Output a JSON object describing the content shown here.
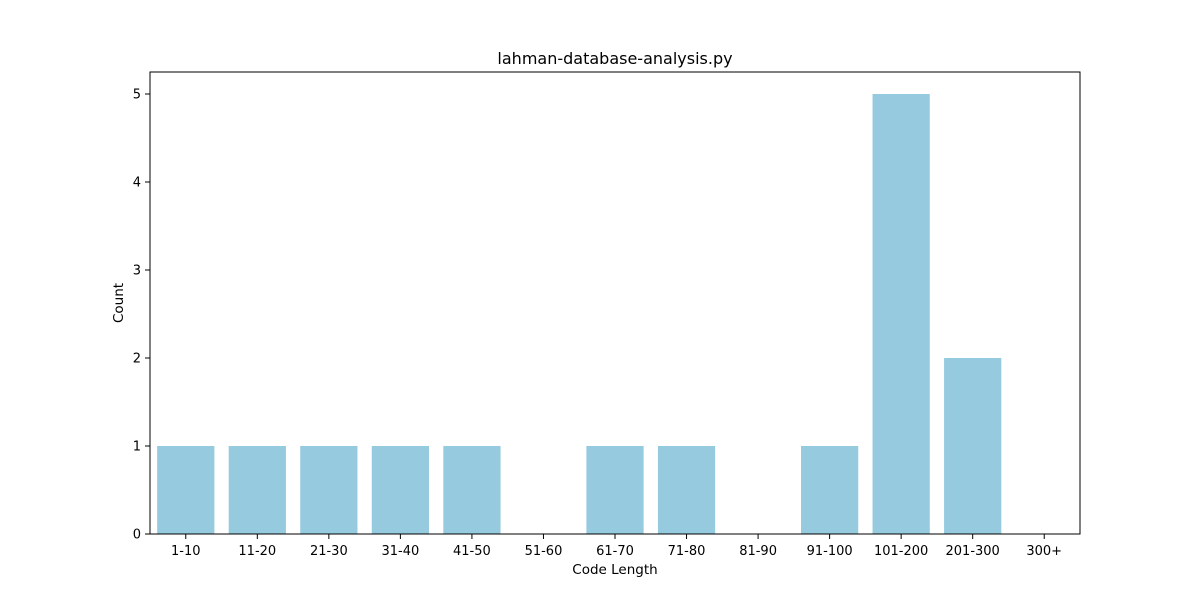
{
  "chart_data": {
    "type": "bar",
    "title": "lahman-database-analysis.py",
    "xlabel": "Code Length",
    "ylabel": "Count",
    "categories": [
      "1-10",
      "11-20",
      "21-30",
      "31-40",
      "41-50",
      "51-60",
      "61-70",
      "71-80",
      "81-90",
      "91-100",
      "101-200",
      "201-300",
      "300+"
    ],
    "values": [
      1,
      1,
      1,
      1,
      1,
      0,
      1,
      1,
      0,
      1,
      5,
      2,
      0
    ],
    "ylim": [
      0,
      5.25
    ],
    "yticks": [
      0,
      1,
      2,
      3,
      4,
      5
    ],
    "grid": false,
    "bar_color": "#96cadf"
  }
}
